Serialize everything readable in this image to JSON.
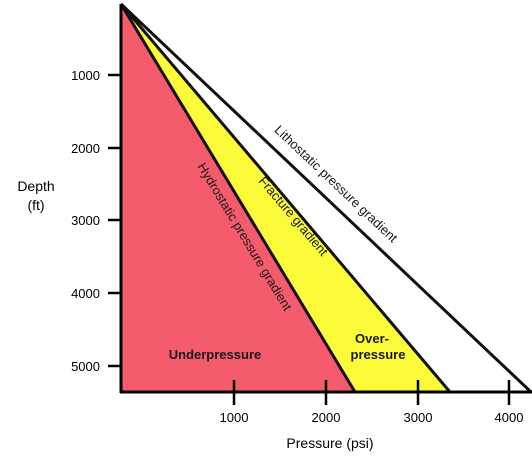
{
  "diagram": {
    "axes": {
      "x_title": "Pressure (psi)",
      "y_title_line1": "Depth",
      "y_title_line2": "(ft)",
      "x_ticks": [
        "1000",
        "2000",
        "3000",
        "4000"
      ],
      "y_ticks": [
        "1000",
        "2000",
        "3000",
        "4000",
        "5000"
      ]
    },
    "lines": {
      "hydrostatic": "Hydrostatic pressure gradient",
      "fracture": "Fracture gradient",
      "lithostatic": "Lithostatic pressure gradient"
    },
    "zones": {
      "underpressure": "Underpressure",
      "overpressure_line1": "Over-",
      "overpressure_line2": "pressure"
    },
    "colors": {
      "underpressure_fill": "#f45b6d",
      "overpressure_fill": "#fbfb3a",
      "line": "#111111",
      "axis": "#000000"
    }
  }
}
